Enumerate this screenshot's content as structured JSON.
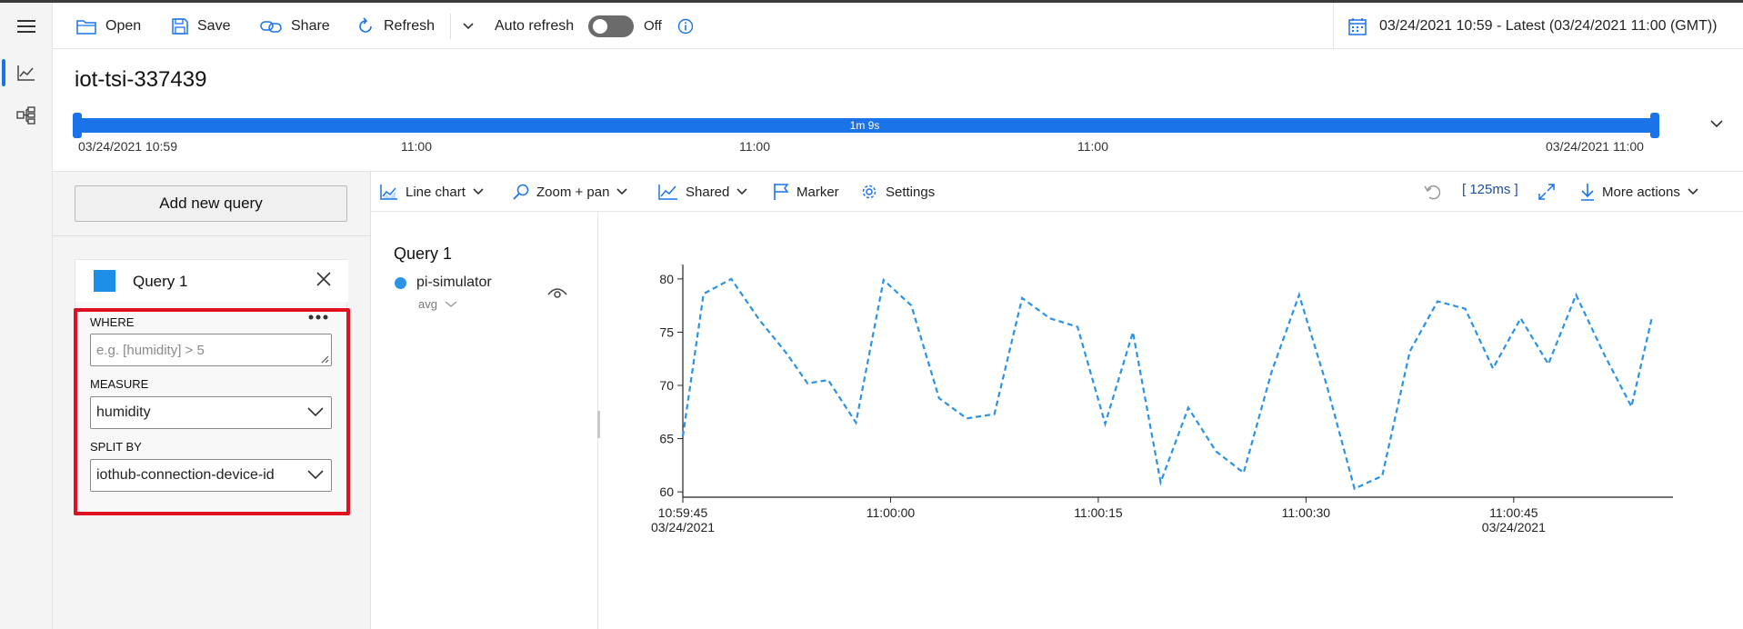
{
  "toolbar": {
    "open_label": "Open",
    "save_label": "Save",
    "share_label": "Share",
    "refresh_label": "Refresh",
    "auto_refresh_label": "Auto refresh",
    "auto_refresh_state": "Off",
    "date_range": "03/24/2021 10:59 - Latest (03/24/2021 11:00 (GMT))"
  },
  "environment": {
    "title": "iot-tsi-337439"
  },
  "availability": {
    "duration_label": "1m 9s",
    "ticks": [
      "03/24/2021 10:59",
      "11:00",
      "11:00",
      "11:00",
      "03/24/2021 11:00"
    ]
  },
  "query_panel": {
    "add_query_label": "Add new query",
    "query": {
      "name": "Query 1",
      "color": "#1e8fe8",
      "where_label": "WHERE",
      "where_placeholder": "e.g. [humidity] > 5",
      "measure_label": "MEASURE",
      "measure_value": "humidity",
      "split_label": "SPLIT BY",
      "split_value": "iothub-connection-device-id"
    }
  },
  "chart_toolbar": {
    "line_chart_label": "Line chart",
    "zoom_label": "Zoom + pan",
    "shared_label": "Shared",
    "marker_label": "Marker",
    "settings_label": "Settings",
    "timing": "[ 125ms ]",
    "more_actions_label": "More actions"
  },
  "legend": {
    "query_title": "Query 1",
    "series_name": "pi-simulator",
    "aggregate": "avg",
    "series_color": "#2b93e6"
  },
  "chart_data": {
    "type": "line",
    "title": "",
    "xlabel": "",
    "ylabel": "",
    "x_unit": "seconds after 10:59:45",
    "xlim": [
      0,
      71.5
    ],
    "ylim": [
      59.5,
      80.5
    ],
    "y_ticks": [
      60,
      65,
      70,
      75,
      80
    ],
    "x_ticks": [
      {
        "t": 0,
        "label": "10:59:45",
        "date": "03/24/2021"
      },
      {
        "t": 15,
        "label": "11:00:00",
        "date": ""
      },
      {
        "t": 30,
        "label": "11:00:15",
        "date": ""
      },
      {
        "t": 45,
        "label": "11:00:30",
        "date": ""
      },
      {
        "t": 60,
        "label": "11:00:45",
        "date": "03/24/2021"
      }
    ],
    "grid": false,
    "line_style": "dashed",
    "series": [
      {
        "name": "pi-simulator",
        "color": "#2b93e6",
        "points": [
          [
            0,
            65.2
          ],
          [
            1.5,
            78.6
          ],
          [
            3.5,
            80.0
          ],
          [
            5.5,
            76.2
          ],
          [
            7.5,
            73.0
          ],
          [
            9,
            70.2
          ],
          [
            10.5,
            70.5
          ],
          [
            12.5,
            66.5
          ],
          [
            14.5,
            79.9
          ],
          [
            16.5,
            77.5
          ],
          [
            18.5,
            68.8
          ],
          [
            20.5,
            66.9
          ],
          [
            22.5,
            67.3
          ],
          [
            24.5,
            78.2
          ],
          [
            26.5,
            76.3
          ],
          [
            28.5,
            75.5
          ],
          [
            30.5,
            66.4
          ],
          [
            32.5,
            75.0
          ],
          [
            34.5,
            60.9
          ],
          [
            36.5,
            67.9
          ],
          [
            38.5,
            63.8
          ],
          [
            40.5,
            61.8
          ],
          [
            42.5,
            71.2
          ],
          [
            44.5,
            78.5
          ],
          [
            46.5,
            70.0
          ],
          [
            48.5,
            60.3
          ],
          [
            50.5,
            61.5
          ],
          [
            52.5,
            73.2
          ],
          [
            54.5,
            77.9
          ],
          [
            56.5,
            77.2
          ],
          [
            58.5,
            71.6
          ],
          [
            60.5,
            76.3
          ],
          [
            62.5,
            72.0
          ],
          [
            64.5,
            78.5
          ],
          [
            66.5,
            73.0
          ],
          [
            68.5,
            68.0
          ],
          [
            70,
            76.5
          ]
        ]
      }
    ]
  }
}
